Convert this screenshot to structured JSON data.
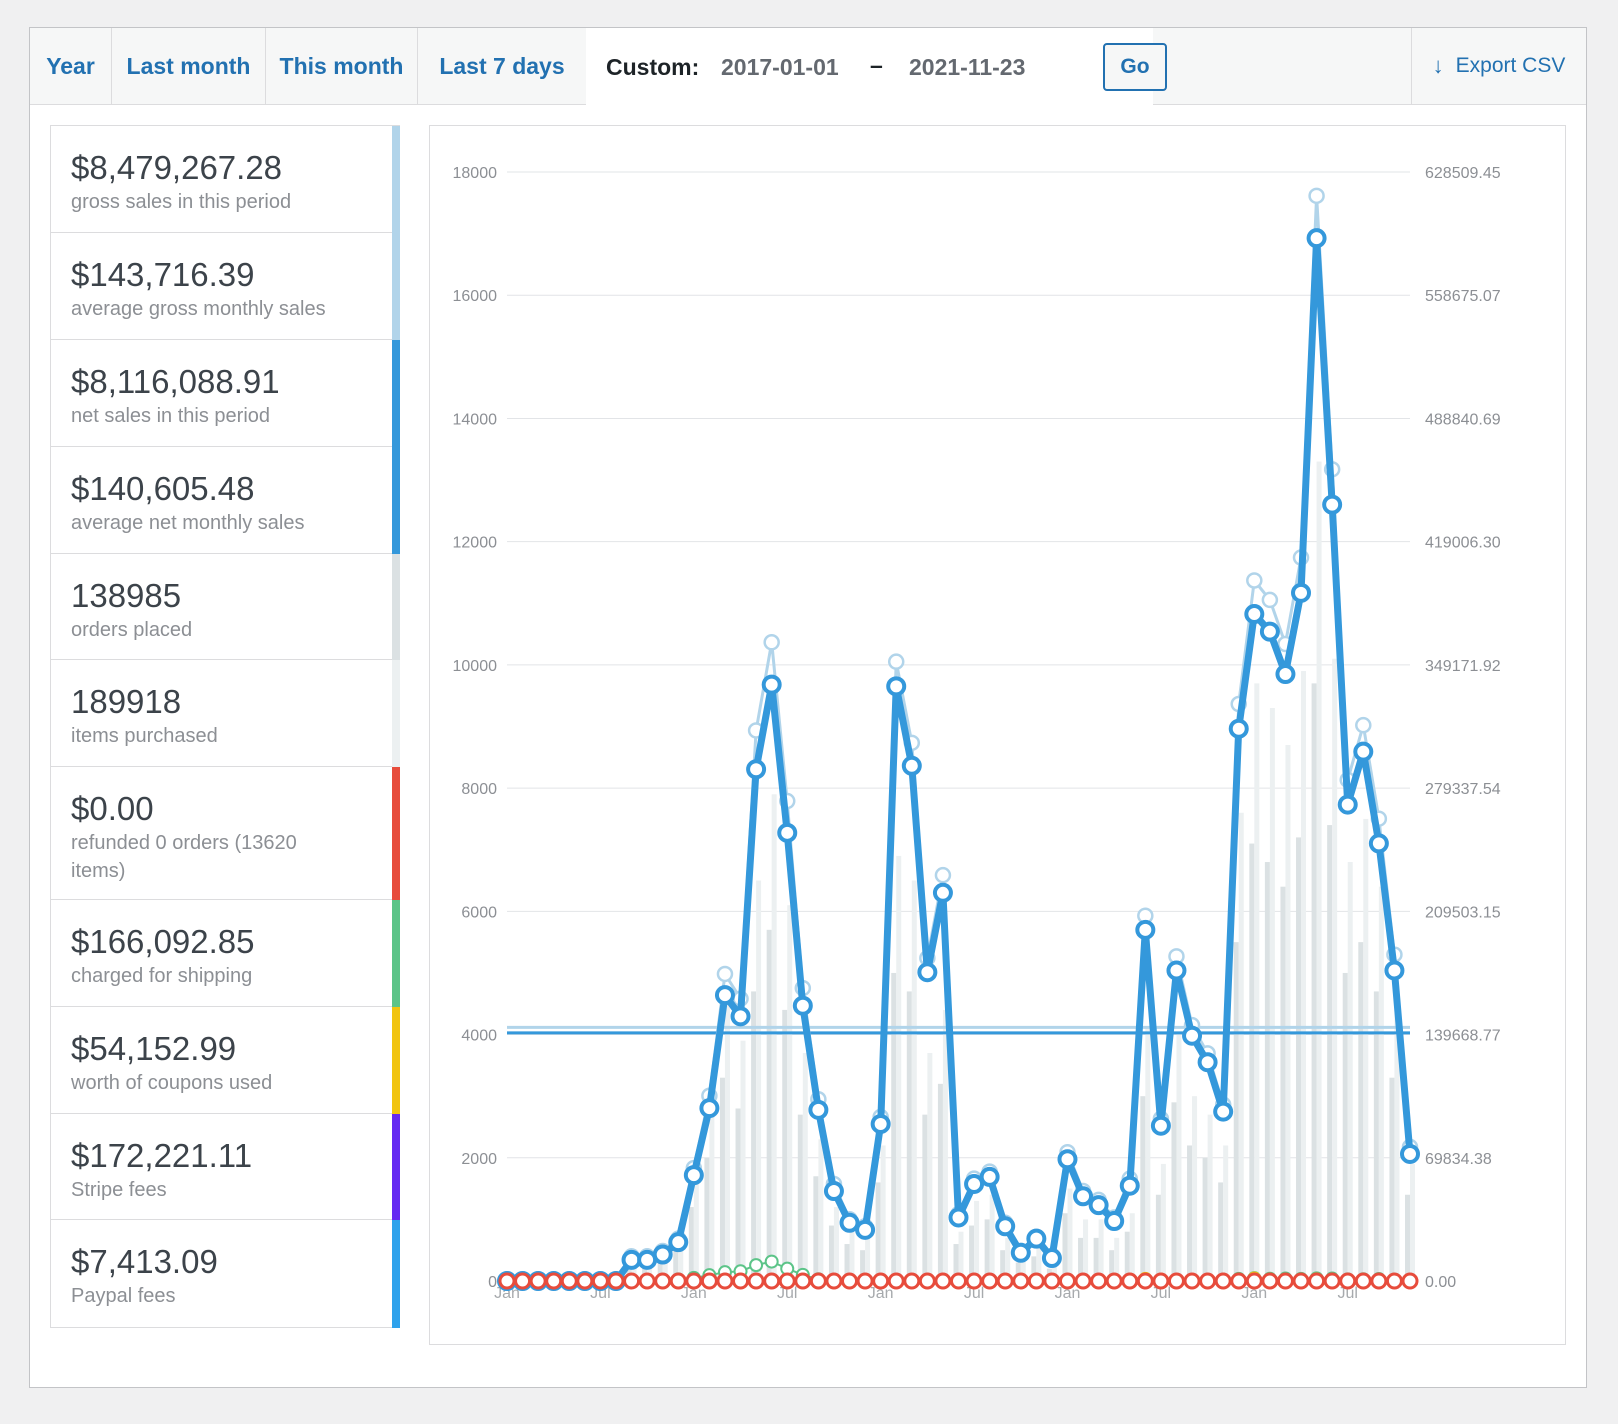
{
  "tabs": [
    {
      "label": "Year"
    },
    {
      "label": "Last month"
    },
    {
      "label": "This month"
    },
    {
      "label": "Last 7 days"
    }
  ],
  "custom": {
    "label": "Custom:",
    "start": "2017-01-01",
    "separator": "–",
    "end": "2021-11-23",
    "go_label": "Go"
  },
  "export": {
    "label": "Export CSV",
    "icon": "download-arrow-icon"
  },
  "legend": [
    {
      "amount": "$8,479,267.28",
      "desc": "gross sales in this period",
      "color": "#b1d4ea"
    },
    {
      "amount": "$143,716.39",
      "desc": "average gross monthly sales",
      "color": "#b1d4ea"
    },
    {
      "amount": "$8,116,088.91",
      "desc": "net sales in this period",
      "color": "#3498db"
    },
    {
      "amount": "$140,605.48",
      "desc": "average net monthly sales",
      "color": "#3498db"
    },
    {
      "amount": "138985",
      "desc": "orders placed",
      "color": "#dbe1e3"
    },
    {
      "amount": "189918",
      "desc": "items purchased",
      "color": "#ecf0f1"
    },
    {
      "amount": "$0.00",
      "desc": "refunded 0 orders (13620 items)",
      "color": "#e74c3c"
    },
    {
      "amount": "$166,092.85",
      "desc": "charged for shipping",
      "color": "#5cc488"
    },
    {
      "amount": "$54,152.99",
      "desc": "worth of coupons used",
      "color": "#f1c40f"
    },
    {
      "amount": "$172,221.11",
      "desc": "Stripe fees",
      "color": "#6529f2"
    },
    {
      "amount": "$7,413.09",
      "desc": "Paypal fees",
      "color": "#2ea2ec"
    }
  ],
  "chart_data": {
    "type": "line",
    "x": [
      "2017-01",
      "2017-02",
      "2017-03",
      "2017-04",
      "2017-05",
      "2017-06",
      "2017-07",
      "2017-08",
      "2017-09",
      "2017-10",
      "2017-11",
      "2017-12",
      "2018-01",
      "2018-02",
      "2018-03",
      "2018-04",
      "2018-05",
      "2018-06",
      "2018-07",
      "2018-08",
      "2018-09",
      "2018-10",
      "2018-11",
      "2018-12",
      "2019-01",
      "2019-02",
      "2019-03",
      "2019-04",
      "2019-05",
      "2019-06",
      "2019-07",
      "2019-08",
      "2019-09",
      "2019-10",
      "2019-11",
      "2019-12",
      "2020-01",
      "2020-02",
      "2020-03",
      "2020-04",
      "2020-05",
      "2020-06",
      "2020-07",
      "2020-08",
      "2020-09",
      "2020-10",
      "2020-11",
      "2020-12",
      "2021-01",
      "2021-02",
      "2021-03",
      "2021-04",
      "2021-05",
      "2021-06",
      "2021-07",
      "2021-08",
      "2021-09",
      "2021-10",
      "2021-11"
    ],
    "x_tick_labels": [
      {
        "label": "Jan",
        "index": 0
      },
      {
        "label": "Jul",
        "index": 6
      },
      {
        "label": "Jan",
        "index": 12
      },
      {
        "label": "Jul",
        "index": 18
      },
      {
        "label": "Jan",
        "index": 24
      },
      {
        "label": "Jul",
        "index": 30
      },
      {
        "label": "Jan",
        "index": 36
      },
      {
        "label": "Jul",
        "index": 42
      },
      {
        "label": "Jan",
        "index": 48
      },
      {
        "label": "Jul",
        "index": 54
      }
    ],
    "y_left": {
      "ticks": [
        "0",
        "2000",
        "4000",
        "6000",
        "8000",
        "10000",
        "12000",
        "14000",
        "16000",
        "18000"
      ],
      "range": [
        0,
        18000
      ]
    },
    "y_right": {
      "ticks": [
        "0.00",
        "69834.38",
        "139668.77",
        "209503.15",
        "279337.54",
        "349171.92",
        "419006.30",
        "488840.69",
        "558675.07",
        "628509.45"
      ],
      "range": [
        0,
        628509.45
      ]
    },
    "grid": true,
    "series": [
      {
        "name": "net sales",
        "axis": "right",
        "color": "#3498db",
        "values": [
          0,
          0,
          0,
          0,
          0,
          0,
          0,
          0,
          12000,
          12000,
          15000,
          22000,
          60000,
          98000,
          162000,
          150000,
          290000,
          338000,
          254000,
          156000,
          97000,
          51000,
          33000,
          29000,
          89000,
          337000,
          292000,
          175000,
          220000,
          36000,
          55000,
          59000,
          31000,
          16000,
          24000,
          13000,
          69000,
          48000,
          43000,
          34000,
          54000,
          199000,
          88000,
          176000,
          139000,
          124000,
          96000,
          313000,
          378000,
          368000,
          344000,
          390000,
          591000,
          440000,
          270000,
          300000,
          248000,
          176000,
          72000
        ]
      },
      {
        "name": "gross sales",
        "axis": "right",
        "color": "#b1d4ea",
        "values": [
          0,
          0,
          0,
          0,
          0,
          0,
          0,
          0,
          14000,
          14000,
          17000,
          24000,
          64000,
          105000,
          174000,
          160000,
          312000,
          362000,
          272000,
          166000,
          103000,
          55000,
          35000,
          31000,
          93000,
          351000,
          305000,
          183000,
          230000,
          38000,
          58000,
          62000,
          33000,
          17000,
          25000,
          14000,
          73000,
          51000,
          46000,
          36000,
          58000,
          207000,
          92000,
          184000,
          145000,
          129000,
          100000,
          327000,
          397000,
          386000,
          361000,
          410000,
          615000,
          460000,
          284000,
          315000,
          262000,
          185000,
          76000
        ]
      },
      {
        "name": "average net monthly sales",
        "axis": "right",
        "color": "#3498db",
        "constant": 140605.48
      },
      {
        "name": "average gross monthly sales",
        "axis": "right",
        "color": "#b1d4ea",
        "constant": 143716.39
      },
      {
        "name": "shipping",
        "axis": "right",
        "color": "#5cc488",
        "values": [
          0,
          0,
          0,
          0,
          0,
          0,
          0,
          0,
          0,
          0,
          400,
          900,
          1800,
          3300,
          5000,
          5500,
          9000,
          11000,
          7000,
          3500,
          1000,
          500,
          300,
          200,
          200,
          300,
          300,
          200,
          200,
          100,
          100,
          100,
          100,
          100,
          100,
          100,
          100,
          100,
          200,
          300,
          500,
          600,
          600,
          500,
          600,
          700,
          800,
          1200,
          1600,
          1300,
          1400,
          1200,
          1500,
          1400,
          900,
          1000,
          1100,
          800,
          600
        ]
      },
      {
        "name": "coupons",
        "axis": "right",
        "color": "#f1c40f",
        "values": [
          0,
          0,
          0,
          0,
          0,
          0,
          0,
          0,
          0,
          0,
          0,
          0,
          0,
          0,
          0,
          0,
          0,
          0,
          0,
          0,
          0,
          0,
          0,
          0,
          0,
          0,
          0,
          0,
          0,
          0,
          0,
          0,
          0,
          0,
          0,
          0,
          0,
          0,
          0,
          0,
          800,
          1200,
          800,
          600,
          400,
          500,
          300,
          700,
          1400,
          800,
          600,
          500,
          900,
          700,
          300,
          400,
          300,
          200,
          100
        ]
      },
      {
        "name": "refunds",
        "axis": "right",
        "color": "#e74c3c",
        "values": [
          0,
          0,
          0,
          0,
          0,
          0,
          0,
          0,
          0,
          0,
          0,
          0,
          0,
          0,
          0,
          0,
          0,
          0,
          0,
          0,
          0,
          0,
          0,
          0,
          0,
          0,
          0,
          0,
          0,
          0,
          0,
          0,
          0,
          0,
          0,
          0,
          0,
          0,
          0,
          0,
          0,
          0,
          0,
          0,
          0,
          0,
          0,
          0,
          0,
          0,
          0,
          0,
          0,
          0,
          0,
          0,
          0,
          0,
          0
        ]
      },
      {
        "name": "orders placed",
        "axis": "left",
        "type": "bar",
        "color": "#dbe1e3",
        "values": [
          0,
          0,
          0,
          0,
          0,
          0,
          0,
          0,
          300,
          300,
          400,
          600,
          1200,
          2000,
          3300,
          2800,
          4700,
          5700,
          4400,
          2700,
          1700,
          900,
          600,
          500,
          1600,
          5000,
          4700,
          2700,
          3200,
          600,
          900,
          1000,
          500,
          300,
          400,
          200,
          1100,
          700,
          700,
          500,
          800,
          3000,
          1400,
          2900,
          2200,
          2000,
          1600,
          5500,
          7100,
          6800,
          6400,
          7200,
          9700,
          7400,
          5000,
          5500,
          4700,
          3300,
          1400
        ]
      },
      {
        "name": "items purchased",
        "axis": "left",
        "type": "bar",
        "color": "#ecf0f1",
        "values": [
          0,
          0,
          0,
          0,
          0,
          0,
          0,
          0,
          450,
          450,
          550,
          800,
          1700,
          2800,
          4600,
          3900,
          6500,
          7900,
          6100,
          3700,
          2300,
          1200,
          800,
          700,
          2200,
          6900,
          6500,
          3700,
          4400,
          800,
          1300,
          1400,
          700,
          400,
          550,
          300,
          1500,
          1000,
          1000,
          700,
          1100,
          4100,
          1900,
          4000,
          3000,
          2700,
          2200,
          7600,
          9700,
          9300,
          8700,
          9900,
          13300,
          10100,
          6800,
          7500,
          6400,
          4500,
          1900
        ]
      }
    ]
  }
}
